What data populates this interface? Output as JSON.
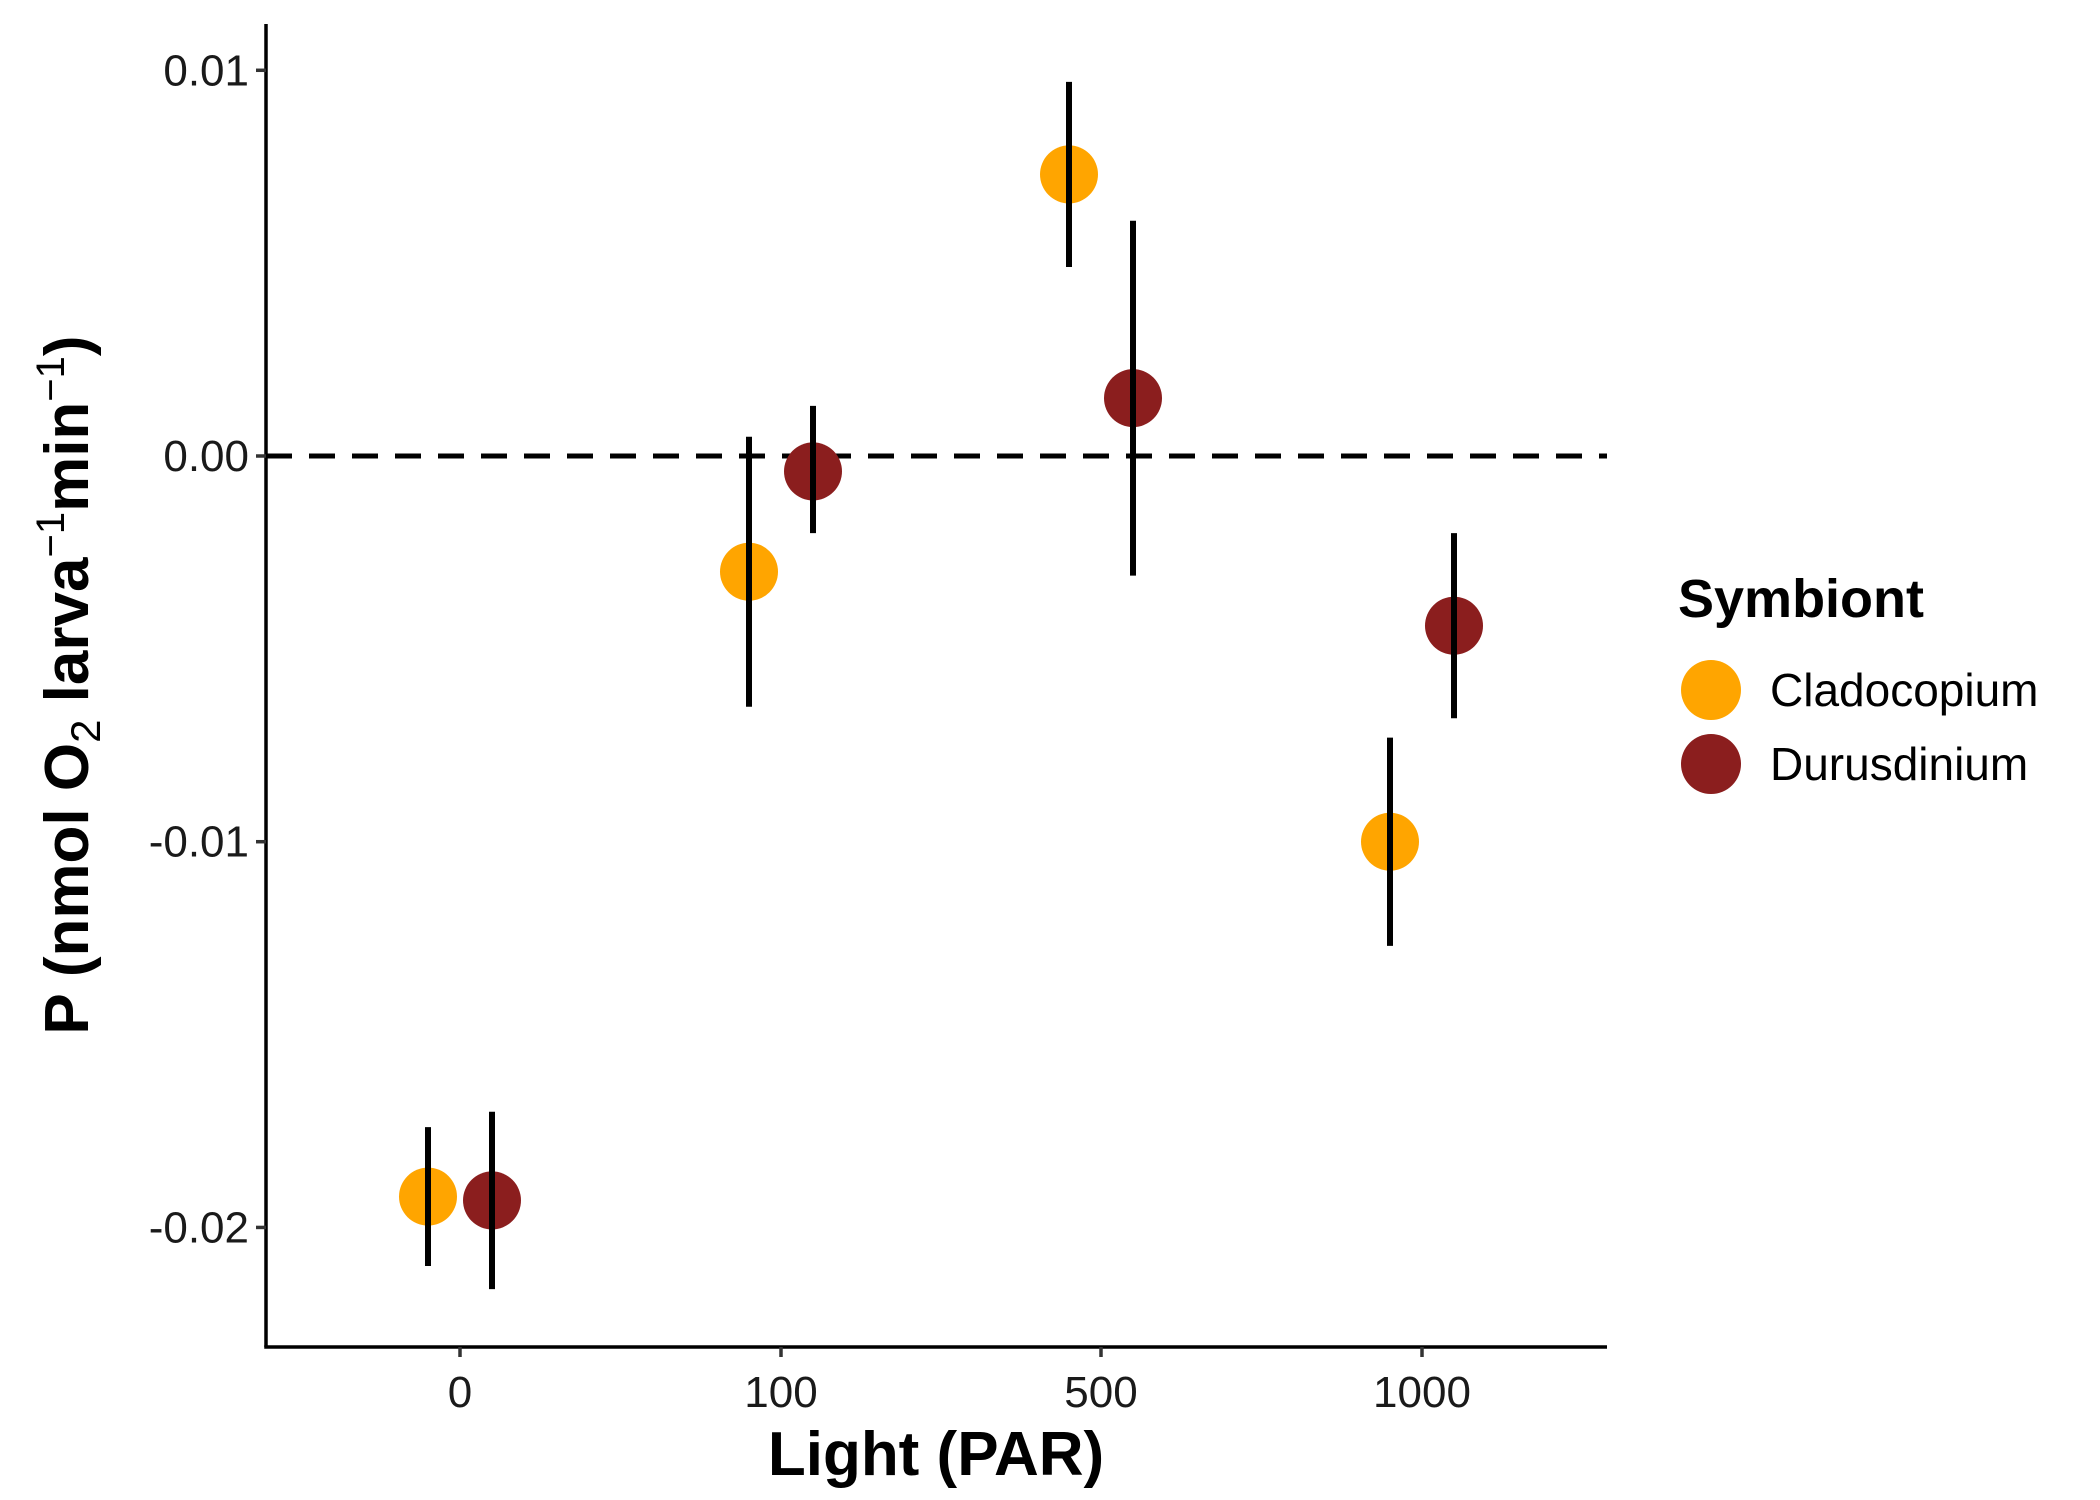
{
  "chart_data": {
    "type": "scatter",
    "title": "",
    "xlabel": "Light (PAR)",
    "ylabel": {
      "main": "P (nmol O",
      "sub": "2",
      "mid1": " larva",
      "sup1": "−1",
      "mid2": "min",
      "sup2": "−1",
      "end": ")"
    },
    "categories": [
      "0",
      "100",
      "500",
      "1000"
    ],
    "ylim": [
      -0.0231,
      0.0112
    ],
    "yticks": [
      {
        "value": 0.01,
        "label": "0.01"
      },
      {
        "value": 0.0,
        "label": "0.00"
      },
      {
        "value": -0.01,
        "label": "-0.01"
      },
      {
        "value": -0.02,
        "label": "-0.02"
      }
    ],
    "reference_line": {
      "y": 0,
      "style": "dashed"
    },
    "grid": false,
    "legend": {
      "title": "Symbiont",
      "position": "right"
    },
    "series": [
      {
        "name": "Cladocopium",
        "color": "#FFA500",
        "points": [
          {
            "category": "0",
            "y": -0.0192,
            "ymin": -0.021,
            "ymax": -0.0174
          },
          {
            "category": "100",
            "y": -0.003,
            "ymin": -0.0065,
            "ymax": 0.0005
          },
          {
            "category": "500",
            "y": 0.0073,
            "ymin": 0.0049,
            "ymax": 0.0097
          },
          {
            "category": "1000",
            "y": -0.01,
            "ymin": -0.0127,
            "ymax": -0.0073
          }
        ]
      },
      {
        "name": "Durusdinium",
        "color": "#8B1E1E",
        "points": [
          {
            "category": "0",
            "y": -0.0193,
            "ymin": -0.0216,
            "ymax": -0.017
          },
          {
            "category": "100",
            "y": -0.0004,
            "ymin": -0.002,
            "ymax": 0.0013
          },
          {
            "category": "500",
            "y": 0.0015,
            "ymin": -0.0031,
            "ymax": 0.0061
          },
          {
            "category": "1000",
            "y": -0.0044,
            "ymin": -0.0068,
            "ymax": -0.002
          }
        ]
      }
    ]
  }
}
